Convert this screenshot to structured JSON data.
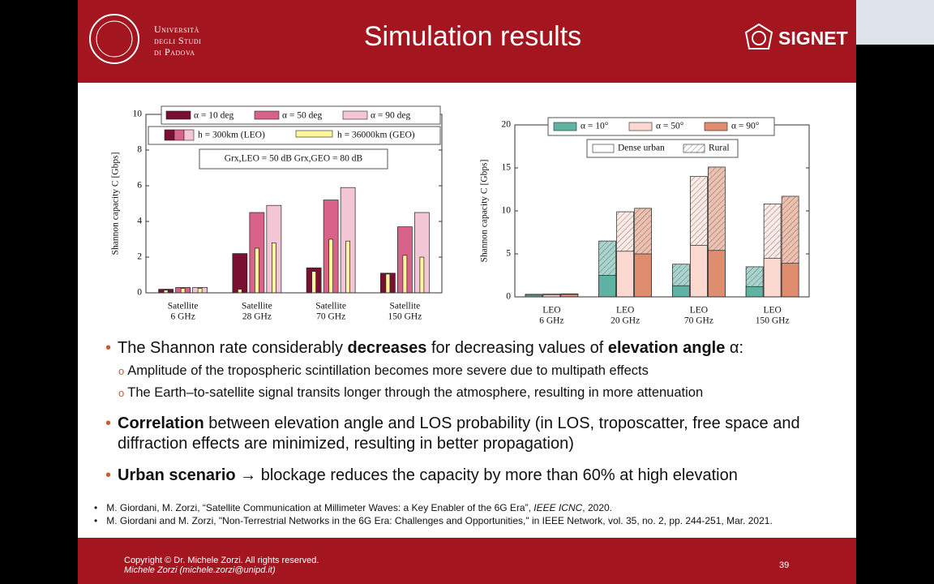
{
  "header": {
    "title": "Simulation results",
    "university": [
      "Università",
      "degli Studi",
      "di Padova"
    ],
    "logo": "SIGNET"
  },
  "chart_data": [
    {
      "type": "bar",
      "ylabel": "Shannon capacity C [Gbps]",
      "categories": [
        [
          "Satellite",
          "6 GHz"
        ],
        [
          "Satellite",
          "28 GHz"
        ],
        [
          "Satellite",
          "70 GHz"
        ],
        [
          "Satellite",
          "150 GHz"
        ]
      ],
      "ylim": [
        0,
        10
      ],
      "yticks": [
        0,
        2,
        4,
        6,
        8,
        10
      ],
      "series": [
        {
          "name": "α = 10 deg",
          "color": "#7a1030",
          "values": [
            0.2,
            2.2,
            1.4,
            1.1
          ]
        },
        {
          "name": "α = 50 deg",
          "color": "#d9628a",
          "values": [
            0.3,
            4.5,
            5.2,
            3.7
          ]
        },
        {
          "name": "α = 90 deg",
          "color": "#f2c6d4",
          "values": [
            0.3,
            4.9,
            5.9,
            4.5
          ]
        },
        {
          "color": "#fff59a",
          "narrow": true,
          "values": [
            0.15,
            0.2,
            1.2,
            1.05
          ]
        },
        {
          "color": "#fff59a",
          "narrow": true,
          "values": [
            0.25,
            2.5,
            3.0,
            2.1
          ]
        },
        {
          "color": "#fff59a",
          "narrow": true,
          "values": [
            0.25,
            2.8,
            2.9,
            2.0
          ]
        }
      ],
      "height_legend": [
        "h = 300km (LEO)",
        "h = 36000km (GEO)"
      ],
      "annotation": "Grx,LEO = 50 dB    Grx,GEO = 80 dB"
    },
    {
      "type": "bar",
      "ylabel": "Shannon capacity C [Gbps]",
      "categories": [
        [
          "LEO",
          "6 GHz"
        ],
        [
          "LEO",
          "20 GHz"
        ],
        [
          "LEO",
          "70 GHz"
        ],
        [
          "LEO",
          "150 GHz"
        ]
      ],
      "ylim": [
        0,
        20
      ],
      "yticks": [
        0,
        5,
        10,
        15,
        20
      ],
      "series": [
        {
          "color": "#5fb3a3",
          "hatch": true,
          "values": [
            0.3,
            6.5,
            3.8,
            3.5
          ]
        },
        {
          "color": "#fbd9d0",
          "hatch": true,
          "values": [
            0.35,
            9.9,
            14.0,
            10.8
          ]
        },
        {
          "color": "#e08c6f",
          "hatch": true,
          "values": [
            0.35,
            10.3,
            15.1,
            11.7
          ]
        },
        {
          "name": "α = 10°",
          "color": "#5fb3a3",
          "values": [
            0.2,
            2.5,
            1.3,
            1.2
          ]
        },
        {
          "name": "α = 50°",
          "color": "#fbd9d0",
          "values": [
            0.25,
            5.3,
            6.0,
            4.5
          ]
        },
        {
          "name": "α = 90°",
          "color": "#e08c6f",
          "values": [
            0.3,
            5.0,
            5.4,
            3.9
          ]
        }
      ],
      "pattern_legend": [
        "Dense urban",
        "Rural"
      ]
    }
  ],
  "bullets": [
    {
      "runs": [
        {
          "text": "The Shannon rate considerably "
        },
        {
          "text": "decreases",
          "bold": true
        },
        {
          "text": " for decreasing values of "
        },
        {
          "text": "elevation angle",
          "bold": true
        },
        {
          "text": " α:"
        }
      ],
      "sub": [
        "Amplitude of the tropospheric scintillation becomes more severe due to multipath effects",
        "The Earth–to-satellite signal transits longer through the atmosphere, resulting in more attenuation"
      ]
    },
    {
      "runs": [
        {
          "text": "Correlation",
          "bold": true
        },
        {
          "text": " between elevation angle and LOS probability (in LOS, troposcatter, free space and diffraction effects are minimized, resulting in better propagation)"
        }
      ]
    },
    {
      "runs": [
        {
          "text": "Urban scenario",
          "bold": true
        },
        {
          "text": " → blockage reduces the capacity by more than 60% at high elevation"
        }
      ]
    }
  ],
  "references": [
    [
      {
        "text": "M. Giordani, M. Zorzi, “Satellite Communication at Millimeter Waves: a Key Enabler of the 6G Era”, "
      },
      {
        "text": "IEEE ICNC",
        "italic": true
      },
      {
        "text": ", 2020."
      }
    ],
    [
      {
        "text": "M. Giordani and M. Zorzi, \"Non-Terrestrial Networks in the 6G Era: Challenges and Opportunities,\" in IEEE Network, vol. 35, no. 2, pp. 244-251, Mar. 2021."
      }
    ]
  ],
  "footer": {
    "copyright": "Copyright © Dr. Michele Zorzi. All rights reserved.",
    "author": "Michele Zorzi (michele.zorzi@unipd.it)",
    "page": "39"
  }
}
